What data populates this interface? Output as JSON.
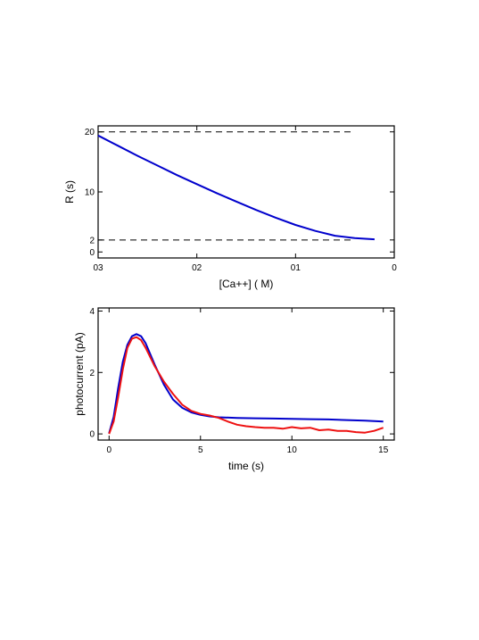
{
  "chart_data": [
    {
      "type": "line",
      "xlabel": "[Ca++] (   M)",
      "ylabel": "R (s)",
      "xlim": [
        0.3,
        0
      ],
      "ylim": [
        -1,
        21
      ],
      "x_ticks": [
        "03",
        "02",
        "01",
        "0"
      ],
      "x_tick_values": [
        0.3,
        0.2,
        0.1,
        0
      ],
      "y_ticks": [
        "0",
        "2",
        "10",
        "20"
      ],
      "y_tick_values": [
        0,
        2,
        10,
        20
      ],
      "reference_lines": [
        2,
        20
      ],
      "series": [
        {
          "color": "#0000cc",
          "x": [
            0.3,
            0.28,
            0.26,
            0.24,
            0.22,
            0.2,
            0.18,
            0.16,
            0.14,
            0.12,
            0.1,
            0.08,
            0.06,
            0.04,
            0.02
          ],
          "y": [
            19.4,
            17.7,
            16.0,
            14.4,
            12.8,
            11.3,
            9.8,
            8.4,
            7.0,
            5.7,
            4.5,
            3.5,
            2.7,
            2.3,
            2.1
          ]
        }
      ],
      "grid": false
    },
    {
      "type": "line",
      "xlabel": "time (s)",
      "ylabel": "photocurrent (pA)",
      "xlim": [
        -0.6,
        15.6
      ],
      "ylim": [
        -0.2,
        4.1
      ],
      "x_ticks": [
        "0",
        "5",
        "10",
        "15"
      ],
      "x_tick_values": [
        0,
        5,
        10,
        15
      ],
      "y_ticks": [
        "0",
        "2",
        "4"
      ],
      "y_tick_values": [
        0,
        2,
        4
      ],
      "series": [
        {
          "color": "#0000cc",
          "x": [
            0,
            0.25,
            0.5,
            0.75,
            1.0,
            1.25,
            1.5,
            1.75,
            2.0,
            2.5,
            3.0,
            3.5,
            4.0,
            4.5,
            5.0,
            5.5,
            6.0,
            7.0,
            8.0,
            9.0,
            10.0,
            11.0,
            12.0,
            13.0,
            14.0,
            15.0
          ],
          "y": [
            0.02,
            0.55,
            1.5,
            2.35,
            2.9,
            3.18,
            3.25,
            3.18,
            2.95,
            2.25,
            1.6,
            1.12,
            0.85,
            0.7,
            0.62,
            0.57,
            0.54,
            0.52,
            0.51,
            0.5,
            0.49,
            0.48,
            0.47,
            0.45,
            0.43,
            0.4
          ]
        },
        {
          "color": "#ee1111",
          "x": [
            0,
            0.25,
            0.5,
            0.75,
            1.0,
            1.25,
            1.5,
            1.75,
            2.0,
            2.5,
            3.0,
            3.5,
            4.0,
            4.5,
            5.0,
            5.5,
            6.0,
            6.5,
            7.0,
            7.5,
            8.0,
            8.5,
            9.0,
            9.5,
            10.0,
            10.5,
            11.0,
            11.5,
            12.0,
            12.5,
            13.0,
            13.5,
            14.0,
            14.5,
            15.0
          ],
          "y": [
            0.0,
            0.4,
            1.2,
            2.1,
            2.8,
            3.1,
            3.15,
            3.05,
            2.8,
            2.2,
            1.7,
            1.3,
            0.95,
            0.75,
            0.65,
            0.6,
            0.52,
            0.4,
            0.3,
            0.25,
            0.22,
            0.2,
            0.2,
            0.17,
            0.22,
            0.18,
            0.2,
            0.12,
            0.14,
            0.1,
            0.1,
            0.06,
            0.04,
            0.1,
            0.2
          ]
        }
      ],
      "grid": false
    }
  ]
}
